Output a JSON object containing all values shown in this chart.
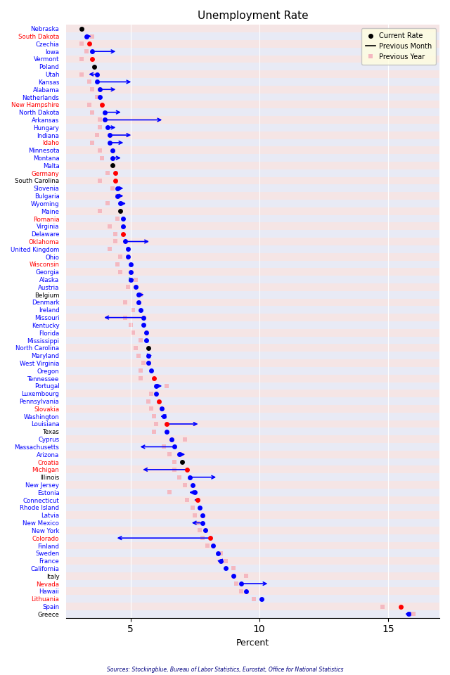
{
  "title": "Unemployment Rate",
  "xlabel": "Percent",
  "source": "Sources: Stockingblue, Bureau of Labor Statistics, Eurostat, Office for National Statistics",
  "xlim": [
    2.5,
    17
  ],
  "xticks": [
    5,
    10,
    15
  ],
  "bg_even": "#f5e5e5",
  "bg_odd": "#e8eaf5",
  "entries": [
    {
      "name": "Nebraska",
      "color": "black",
      "current": 3.1,
      "prev_month": null,
      "prev_year": null,
      "line_color": "blue"
    },
    {
      "name": "South Dakota",
      "color": "blue",
      "current": 3.3,
      "prev_month": 3.55,
      "prev_year": 3.5,
      "line_color": "blue"
    },
    {
      "name": "Czechia",
      "color": "red",
      "current": 3.4,
      "prev_month": null,
      "prev_year": 3.1,
      "line_color": "blue"
    },
    {
      "name": "Iowa",
      "color": "blue",
      "current": 3.5,
      "prev_month": 4.5,
      "prev_year": 3.3,
      "line_color": "blue"
    },
    {
      "name": "Vermont",
      "color": "red",
      "current": 3.5,
      "prev_month": null,
      "prev_year": 3.1,
      "line_color": "blue"
    },
    {
      "name": "Poland",
      "color": "black",
      "current": 3.6,
      "prev_month": null,
      "prev_year": null,
      "line_color": "blue"
    },
    {
      "name": "Utah",
      "color": "blue",
      "current": 3.7,
      "prev_month": 3.3,
      "prev_year": 3.1,
      "line_color": "blue"
    },
    {
      "name": "Kansas",
      "color": "blue",
      "current": 3.7,
      "prev_month": 5.1,
      "prev_year": 3.4,
      "line_color": "blue"
    },
    {
      "name": "Alabama",
      "color": "blue",
      "current": 3.8,
      "prev_month": 4.5,
      "prev_year": 3.5,
      "line_color": "blue"
    },
    {
      "name": "Netherlands",
      "color": "blue",
      "current": 3.8,
      "prev_month": null,
      "prev_year": 3.7,
      "line_color": "blue"
    },
    {
      "name": "New Hampshire",
      "color": "red",
      "current": 3.9,
      "prev_month": null,
      "prev_year": 3.4,
      "line_color": "blue"
    },
    {
      "name": "North Dakota",
      "color": "blue",
      "current": 4.0,
      "prev_month": 4.7,
      "prev_year": 3.5,
      "line_color": "blue"
    },
    {
      "name": "Arkansas",
      "color": "blue",
      "current": 4.0,
      "prev_month": 6.3,
      "prev_year": 3.8,
      "line_color": "blue"
    },
    {
      "name": "Hungary",
      "color": "blue",
      "current": 4.1,
      "prev_month": 4.5,
      "prev_year": 3.8,
      "line_color": "blue"
    },
    {
      "name": "Indiana",
      "color": "blue",
      "current": 4.2,
      "prev_month": 5.1,
      "prev_year": 3.7,
      "line_color": "blue"
    },
    {
      "name": "Idaho",
      "color": "blue",
      "current": 4.2,
      "prev_month": 4.8,
      "prev_year": 3.5,
      "line_color": "blue"
    },
    {
      "name": "Minnesota",
      "color": "blue",
      "current": 4.3,
      "prev_month": null,
      "prev_year": 3.8,
      "line_color": "blue"
    },
    {
      "name": "Montana",
      "color": "blue",
      "current": 4.3,
      "prev_month": 4.7,
      "prev_year": 3.9,
      "line_color": "blue"
    },
    {
      "name": "Malta",
      "color": "black",
      "current": 4.3,
      "prev_month": null,
      "prev_year": null,
      "line_color": "blue"
    },
    {
      "name": "Germany",
      "color": "red",
      "current": 4.4,
      "prev_month": null,
      "prev_year": 4.1,
      "line_color": "blue"
    },
    {
      "name": "South Carolina",
      "color": "red",
      "current": 4.4,
      "prev_month": null,
      "prev_year": 3.8,
      "line_color": "blue"
    },
    {
      "name": "Slovenia",
      "color": "blue",
      "current": 4.5,
      "prev_month": 4.8,
      "prev_year": 4.3,
      "line_color": "blue"
    },
    {
      "name": "Bulgaria",
      "color": "blue",
      "current": 4.5,
      "prev_month": 4.8,
      "prev_year": 4.5,
      "line_color": "blue"
    },
    {
      "name": "Wyoming",
      "color": "blue",
      "current": 4.6,
      "prev_month": 4.9,
      "prev_year": 4.1,
      "line_color": "blue"
    },
    {
      "name": "Maine",
      "color": "black",
      "current": 4.6,
      "prev_month": null,
      "prev_year": 3.8,
      "line_color": "blue"
    },
    {
      "name": "Romania",
      "color": "blue",
      "current": 4.7,
      "prev_month": null,
      "prev_year": 4.5,
      "line_color": "blue"
    },
    {
      "name": "Virginia",
      "color": "blue",
      "current": 4.7,
      "prev_month": null,
      "prev_year": 4.2,
      "line_color": "blue"
    },
    {
      "name": "Delaware",
      "color": "red",
      "current": 4.7,
      "prev_month": null,
      "prev_year": 4.4,
      "line_color": "blue"
    },
    {
      "name": "Oklahoma",
      "color": "blue",
      "current": 4.8,
      "prev_month": 5.8,
      "prev_year": 4.4,
      "line_color": "blue"
    },
    {
      "name": "United Kingdom",
      "color": "blue",
      "current": 4.9,
      "prev_month": null,
      "prev_year": 4.2,
      "line_color": "blue"
    },
    {
      "name": "Ohio",
      "color": "blue",
      "current": 4.9,
      "prev_month": null,
      "prev_year": 4.6,
      "line_color": "blue"
    },
    {
      "name": "Wisconsin",
      "color": "blue",
      "current": 5.0,
      "prev_month": null,
      "prev_year": 4.5,
      "line_color": "blue"
    },
    {
      "name": "Georgia",
      "color": "blue",
      "current": 5.0,
      "prev_month": null,
      "prev_year": 4.6,
      "line_color": "blue"
    },
    {
      "name": "Alaska",
      "color": "blue",
      "current": 5.0,
      "prev_month": 5.2,
      "prev_year": 5.2,
      "line_color": "teal"
    },
    {
      "name": "Austria",
      "color": "blue",
      "current": 5.2,
      "prev_month": null,
      "prev_year": 4.9,
      "line_color": "blue"
    },
    {
      "name": "Belgium",
      "color": "blue",
      "current": 5.3,
      "prev_month": 5.6,
      "prev_year": 5.4,
      "line_color": "blue"
    },
    {
      "name": "Denmark",
      "color": "blue",
      "current": 5.3,
      "prev_month": null,
      "prev_year": 4.8,
      "line_color": "blue"
    },
    {
      "name": "Ireland",
      "color": "blue",
      "current": 5.4,
      "prev_month": null,
      "prev_year": 5.1,
      "line_color": "blue"
    },
    {
      "name": "Missouri",
      "color": "blue",
      "current": 5.5,
      "prev_month": 3.9,
      "prev_year": 4.8,
      "line_color": "blue"
    },
    {
      "name": "Kentucky",
      "color": "blue",
      "current": 5.5,
      "prev_month": null,
      "prev_year": 5.0,
      "line_color": "blue"
    },
    {
      "name": "Florida",
      "color": "blue",
      "current": 5.6,
      "prev_month": null,
      "prev_year": 5.1,
      "line_color": "blue"
    },
    {
      "name": "Mississippi",
      "color": "blue",
      "current": 5.6,
      "prev_month": null,
      "prev_year": 5.4,
      "line_color": "blue"
    },
    {
      "name": "North Carolina",
      "color": "black",
      "current": 5.7,
      "prev_month": null,
      "prev_year": 5.2,
      "line_color": "blue"
    },
    {
      "name": "Maryland",
      "color": "blue",
      "current": 5.7,
      "prev_month": 5.9,
      "prev_year": 5.3,
      "line_color": "blue"
    },
    {
      "name": "West Virginia",
      "color": "blue",
      "current": 5.7,
      "prev_month": null,
      "prev_year": 5.5,
      "line_color": "blue"
    },
    {
      "name": "Oregon",
      "color": "blue",
      "current": 5.8,
      "prev_month": null,
      "prev_year": 5.4,
      "line_color": "blue"
    },
    {
      "name": "Tennessee",
      "color": "red",
      "current": 5.9,
      "prev_month": null,
      "prev_year": 5.4,
      "line_color": "blue"
    },
    {
      "name": "Portugal",
      "color": "blue",
      "current": 6.0,
      "prev_month": 6.3,
      "prev_year": 6.4,
      "line_color": "blue"
    },
    {
      "name": "Luxembourg",
      "color": "blue",
      "current": 6.0,
      "prev_month": null,
      "prev_year": 5.8,
      "line_color": "blue"
    },
    {
      "name": "Pennsylvania",
      "color": "red",
      "current": 6.1,
      "prev_month": null,
      "prev_year": 5.7,
      "line_color": "blue"
    },
    {
      "name": "Slovakia",
      "color": "blue",
      "current": 6.2,
      "prev_month": null,
      "prev_year": 5.8,
      "line_color": "blue"
    },
    {
      "name": "Washington",
      "color": "blue",
      "current": 6.3,
      "prev_month": 6.2,
      "prev_year": 5.9,
      "line_color": "blue"
    },
    {
      "name": "Louisiana",
      "color": "red",
      "current": 6.4,
      "prev_month": 7.7,
      "prev_year": 6.0,
      "line_color": "blue"
    },
    {
      "name": "Texas",
      "color": "blue",
      "current": 6.4,
      "prev_month": null,
      "prev_year": 5.9,
      "line_color": "blue"
    },
    {
      "name": "Cyprus",
      "color": "blue",
      "current": 6.6,
      "prev_month": null,
      "prev_year": 7.1,
      "line_color": "blue"
    },
    {
      "name": "Massachusetts",
      "color": "blue",
      "current": 6.7,
      "prev_month": 5.3,
      "prev_year": 6.3,
      "line_color": "blue"
    },
    {
      "name": "Arizona",
      "color": "blue",
      "current": 6.9,
      "prev_month": 7.2,
      "prev_year": 6.5,
      "line_color": "blue"
    },
    {
      "name": "Croatia",
      "color": "black",
      "current": 7.0,
      "prev_month": null,
      "prev_year": 6.7,
      "line_color": "blue"
    },
    {
      "name": "Michigan",
      "color": "red",
      "current": 7.2,
      "prev_month": 5.4,
      "prev_year": 6.7,
      "line_color": "blue"
    },
    {
      "name": "Illinois",
      "color": "blue",
      "current": 7.3,
      "prev_month": 8.4,
      "prev_year": 6.9,
      "line_color": "blue"
    },
    {
      "name": "New Jersey",
      "color": "blue",
      "current": 7.4,
      "prev_month": null,
      "prev_year": 7.1,
      "line_color": "blue"
    },
    {
      "name": "Estonia",
      "color": "blue",
      "current": 7.5,
      "prev_month": 7.2,
      "prev_year": 6.5,
      "line_color": "blue"
    },
    {
      "name": "Connecticut",
      "color": "red",
      "current": 7.6,
      "prev_month": 7.4,
      "prev_year": 7.2,
      "line_color": "blue"
    },
    {
      "name": "Rhode Island",
      "color": "blue",
      "current": 7.7,
      "prev_month": null,
      "prev_year": 7.4,
      "line_color": "blue"
    },
    {
      "name": "Latvia",
      "color": "blue",
      "current": 7.8,
      "prev_month": null,
      "prev_year": 7.5,
      "line_color": "blue"
    },
    {
      "name": "New Mexico",
      "color": "blue",
      "current": 7.8,
      "prev_month": 7.3,
      "prev_year": 7.6,
      "line_color": "blue"
    },
    {
      "name": "New York",
      "color": "blue",
      "current": 7.9,
      "prev_month": null,
      "prev_year": 7.7,
      "line_color": "blue"
    },
    {
      "name": "Colorado",
      "color": "red",
      "current": 8.1,
      "prev_month": 4.4,
      "prev_year": 7.8,
      "line_color": "blue"
    },
    {
      "name": "Finland",
      "color": "blue",
      "current": 8.2,
      "prev_month": null,
      "prev_year": 8.0,
      "line_color": "blue"
    },
    {
      "name": "Sweden",
      "color": "blue",
      "current": 8.4,
      "prev_month": null,
      "prev_year": 8.5,
      "line_color": "blue"
    },
    {
      "name": "France",
      "color": "blue",
      "current": 8.5,
      "prev_month": 8.4,
      "prev_year": 8.7,
      "line_color": "blue"
    },
    {
      "name": "California",
      "color": "blue",
      "current": 8.7,
      "prev_month": 8.7,
      "prev_year": 9.0,
      "line_color": "teal"
    },
    {
      "name": "Italy",
      "color": "blue",
      "current": 9.0,
      "prev_month": null,
      "prev_year": 9.5,
      "line_color": "blue"
    },
    {
      "name": "Nevada",
      "color": "blue",
      "current": 9.3,
      "prev_month": 10.4,
      "prev_year": 9.1,
      "line_color": "blue"
    },
    {
      "name": "Hawaii",
      "color": "blue",
      "current": 9.5,
      "prev_month": null,
      "prev_year": 9.3,
      "line_color": "blue"
    },
    {
      "name": "Lithuania",
      "color": "blue",
      "current": 10.1,
      "prev_month": null,
      "prev_year": 9.8,
      "line_color": "blue"
    },
    {
      "name": "Spain",
      "color": "red",
      "current": 15.5,
      "prev_month": null,
      "prev_year": 14.8,
      "line_color": "blue"
    },
    {
      "name": "Greece",
      "color": "blue",
      "current": 15.8,
      "prev_month": 15.7,
      "prev_year": 16.0,
      "line_color": "blue"
    }
  ]
}
